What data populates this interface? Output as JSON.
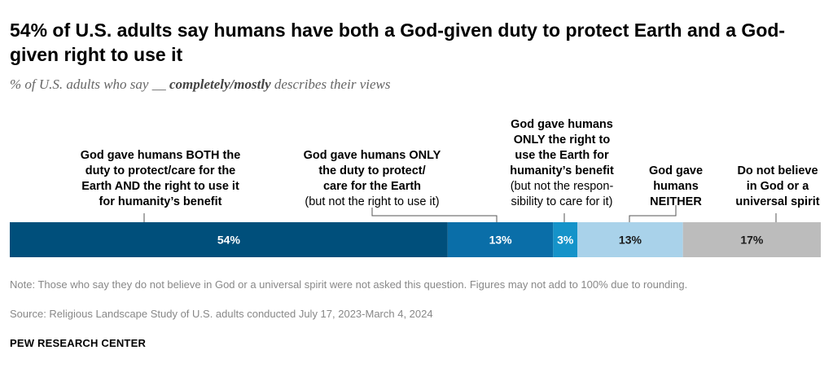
{
  "header": {
    "title": "54% of U.S. adults say humans have both a God-given duty to protect Earth and a God-given right to use it",
    "subtitle_pre": "% of U.S. adults who say __ ",
    "subtitle_em": "completely/mostly",
    "subtitle_post": " describes their views"
  },
  "chart_data": {
    "type": "bar",
    "orientation": "horizontal-stacked",
    "title": "54% of U.S. adults say humans have both a God-given duty to protect Earth and a God-given right to use it",
    "categories": [
      "God gave humans BOTH the duty to protect/care for the Earth AND the right to use it for humanity's benefit",
      "God gave humans ONLY the duty to protect/care for the Earth (but not the right to use it)",
      "God gave humans ONLY the right to use the Earth for humanity's benefit (but not the responsibility to care for it)",
      "God gave humans NEITHER",
      "Do not believe in God or a universal spirit"
    ],
    "values": [
      54,
      13,
      3,
      13,
      17
    ],
    "value_labels": [
      "54%",
      "13%",
      "3%",
      "13%",
      "17%"
    ],
    "colors": [
      "#004f7b",
      "#0a6ea8",
      "#1593c9",
      "#a9d2ea",
      "#bcbcbc"
    ],
    "label_colors": [
      "#ffffff",
      "#ffffff",
      "#ffffff",
      "#1a1a1a",
      "#1a1a1a"
    ],
    "xlim": [
      0,
      100
    ],
    "labels": [
      {
        "strong": [
          "God gave humans BOTH the",
          "duty to protect/care for the",
          "Earth AND the right to use it",
          "for humanity’s benefit"
        ],
        "light": []
      },
      {
        "strong": [
          "God gave humans ONLY",
          "the duty to protect/",
          "care for the Earth"
        ],
        "light": [
          "(but not the right to use it)"
        ]
      },
      {
        "strong": [
          "God gave humans",
          "ONLY the right to",
          "use the Earth for",
          "humanity’s benefit"
        ],
        "light": [
          "(but not the respon-",
          "sibility to care for it)"
        ]
      },
      {
        "strong": [
          "God gave",
          "humans",
          "NEITHER"
        ],
        "light": []
      },
      {
        "strong": [
          "Do not believe",
          "in God or a",
          "universal spirit"
        ],
        "light": []
      }
    ]
  },
  "footer": {
    "note": "Note: Those who say they do not believe in God or a universal spirit were not asked this question. Figures may not add to 100% due to rounding.",
    "source": "Source: Religious Landscape Study of U.S. adults conducted July 17, 2023-March 4, 2024",
    "brand": "PEW RESEARCH CENTER"
  }
}
